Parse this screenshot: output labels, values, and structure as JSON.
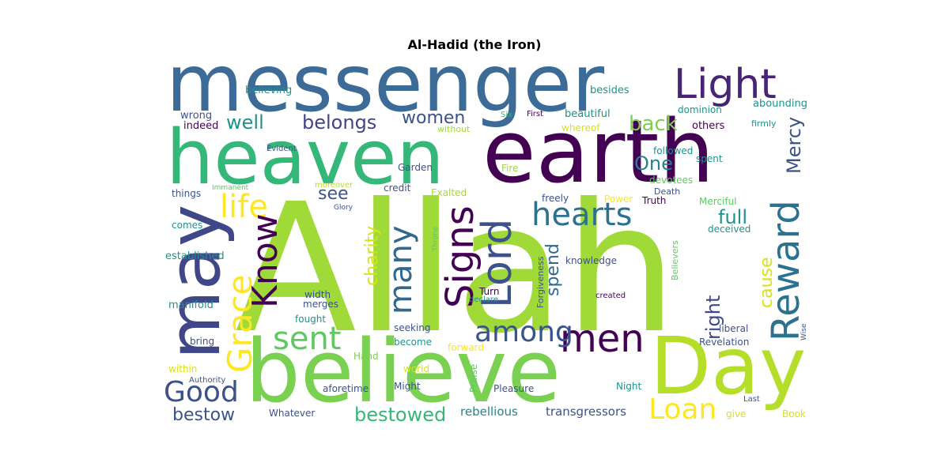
{
  "title": "Al-Hadid (the Iron)",
  "palette": {
    "dark_purple": "#440154",
    "indigo": "#472f7d",
    "blue": "#3b528b",
    "steel_blue": "#2c728e",
    "teal": "#21918c",
    "sea_green": "#28ae80",
    "green": "#5ec962",
    "lime": "#addc30",
    "yellow": "#fde725"
  },
  "words": [
    {
      "text": "Allah",
      "color": "#a0da39"
    },
    {
      "text": "messenger",
      "color": "#3b6b96"
    },
    {
      "text": "earth",
      "color": "#440154"
    },
    {
      "text": "heaven",
      "color": "#35b779"
    },
    {
      "text": "believe",
      "color": "#7ad151"
    },
    {
      "text": "Day",
      "color": "#b5de2b"
    },
    {
      "text": "may",
      "color": "#404788"
    },
    {
      "text": "Light",
      "color": "#482475"
    },
    {
      "text": "Reward",
      "color": "#2c728e"
    },
    {
      "text": "hearts",
      "color": "#2c728e"
    },
    {
      "text": "Lord",
      "color": "#3b528b"
    },
    {
      "text": "Signs",
      "color": "#440154"
    },
    {
      "text": "men",
      "color": "#440154"
    },
    {
      "text": "among",
      "color": "#3b528b"
    },
    {
      "text": "sent",
      "color": "#5ec962"
    },
    {
      "text": "Grace",
      "color": "#fde725"
    },
    {
      "text": "life",
      "color": "#fde725"
    },
    {
      "text": "Know",
      "color": "#440154"
    },
    {
      "text": "many",
      "color": "#31688e"
    },
    {
      "text": "Good",
      "color": "#3b528b"
    },
    {
      "text": "Loan",
      "color": "#fde725"
    },
    {
      "text": "bestowed",
      "color": "#35b779"
    },
    {
      "text": "bestow",
      "color": "#3b528b"
    },
    {
      "text": "women",
      "color": "#3b528b"
    },
    {
      "text": "belongs",
      "color": "#414487"
    },
    {
      "text": "well",
      "color": "#21918c"
    },
    {
      "text": "back",
      "color": "#7ad151"
    },
    {
      "text": "One",
      "color": "#26828e"
    },
    {
      "text": "Mercy",
      "color": "#3b528b"
    },
    {
      "text": "charity",
      "color": "#d8e219"
    },
    {
      "text": "see",
      "color": "#3b528b"
    },
    {
      "text": "full",
      "color": "#21918c"
    },
    {
      "text": "cause",
      "color": "#d8e219"
    },
    {
      "text": "spend",
      "color": "#31688e"
    },
    {
      "text": "right",
      "color": "#3e4989"
    },
    {
      "text": "rebellious",
      "color": "#26828e"
    },
    {
      "text": "transgressors",
      "color": "#3b528b"
    },
    {
      "text": "believing",
      "color": "#21918c"
    },
    {
      "text": "wrong",
      "color": "#3b528b"
    },
    {
      "text": "indeed",
      "color": "#440154"
    },
    {
      "text": "besides",
      "color": "#21918c"
    },
    {
      "text": "beautiful",
      "color": "#21918c"
    },
    {
      "text": "abounding",
      "color": "#21918c"
    },
    {
      "text": "dominion",
      "color": "#21918c"
    },
    {
      "text": "firmly",
      "color": "#21918c"
    },
    {
      "text": "others",
      "color": "#440154"
    },
    {
      "text": "whereof",
      "color": "#d8e219"
    },
    {
      "text": "without",
      "color": "#a0da39"
    },
    {
      "text": "Six",
      "color": "#35b779"
    },
    {
      "text": "First",
      "color": "#440154"
    },
    {
      "text": "Evident",
      "color": "#3b528b"
    },
    {
      "text": "followed",
      "color": "#21918c"
    },
    {
      "text": "spent",
      "color": "#21918c"
    },
    {
      "text": "Garden",
      "color": "#3b528b"
    },
    {
      "text": "Fire",
      "color": "#a0da39"
    },
    {
      "text": "devotees",
      "color": "#5ec962"
    },
    {
      "text": "moreover",
      "color": "#b5de2b"
    },
    {
      "text": "Immanent",
      "color": "#5ec962"
    },
    {
      "text": "things",
      "color": "#3b528b"
    },
    {
      "text": "credit",
      "color": "#3b528b"
    },
    {
      "text": "Exalted",
      "color": "#a0da39"
    },
    {
      "text": "Death",
      "color": "#3b528b"
    },
    {
      "text": "Truth",
      "color": "#440154"
    },
    {
      "text": "Glory",
      "color": "#3b528b"
    },
    {
      "text": "freely",
      "color": "#3b528b"
    },
    {
      "text": "Power",
      "color": "#fde725"
    },
    {
      "text": "Merciful",
      "color": "#5ec962"
    },
    {
      "text": "deceived",
      "color": "#21918c"
    },
    {
      "text": "comes",
      "color": "#21918c"
    },
    {
      "text": "Throne",
      "color": "#5ec962"
    },
    {
      "text": "established",
      "color": "#21918c"
    },
    {
      "text": "Forgiveness",
      "color": "#3b528b"
    },
    {
      "text": "knowledge",
      "color": "#3b528b"
    },
    {
      "text": "Believers",
      "color": "#5ec962"
    },
    {
      "text": "Turn",
      "color": "#440154"
    },
    {
      "text": "declare",
      "color": "#21918c"
    },
    {
      "text": "width",
      "color": "#3b528b"
    },
    {
      "text": "merges",
      "color": "#3b528b"
    },
    {
      "text": "manifold",
      "color": "#21918c"
    },
    {
      "text": "created",
      "color": "#440154"
    },
    {
      "text": "fought",
      "color": "#21918c"
    },
    {
      "text": "liberal",
      "color": "#3b528b"
    },
    {
      "text": "Wise",
      "color": "#3b528b"
    },
    {
      "text": "bring",
      "color": "#3b528b"
    },
    {
      "text": "seeking",
      "color": "#3b528b"
    },
    {
      "text": "become",
      "color": "#21918c"
    },
    {
      "text": "forward",
      "color": "#fde725"
    },
    {
      "text": "Revelation",
      "color": "#3b528b"
    },
    {
      "text": "Hand",
      "color": "#7ad151"
    },
    {
      "text": "within",
      "color": "#d8e219"
    },
    {
      "text": "world",
      "color": "#d8e219"
    },
    {
      "text": "Praise",
      "color": "#5ec962"
    },
    {
      "text": "Authority",
      "color": "#3b528b"
    },
    {
      "text": "aforetime",
      "color": "#3b528b"
    },
    {
      "text": "Might",
      "color": "#3b528b"
    },
    {
      "text": "Pleasure",
      "color": "#3b528b"
    },
    {
      "text": "Night",
      "color": "#21918c"
    },
    {
      "text": "Last",
      "color": "#3b528b"
    },
    {
      "text": "Whatever",
      "color": "#3b528b"
    },
    {
      "text": "give",
      "color": "#d8e219"
    },
    {
      "text": "Book",
      "color": "#d8e219"
    }
  ]
}
